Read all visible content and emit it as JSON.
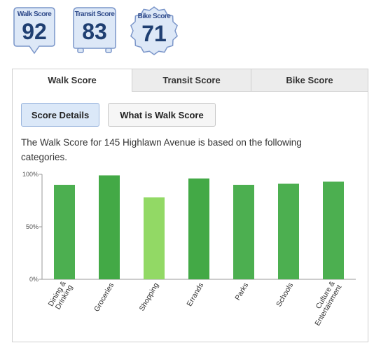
{
  "badges": [
    {
      "label": "Walk Score",
      "value": "92",
      "icon": "walk-pin-icon"
    },
    {
      "label": "Transit Score",
      "value": "83",
      "icon": "transit-bus-icon"
    },
    {
      "label": "Bike Score",
      "value": "71",
      "icon": "bike-gear-icon"
    }
  ],
  "tabs": [
    {
      "label": "Walk Score",
      "active": true
    },
    {
      "label": "Transit Score",
      "active": false
    },
    {
      "label": "Bike Score",
      "active": false
    }
  ],
  "buttons": {
    "score_details": "Score Details",
    "what_is": "What is Walk Score"
  },
  "description": "The Walk Score for 145 Highlawn Avenue is based on the following categories.",
  "colors": {
    "bar_dark": "#4caf50",
    "bar_light": "#92d965",
    "badge_fill": "#dde8f7",
    "badge_stroke": "#7a95c9"
  },
  "chart_data": {
    "type": "bar",
    "categories": [
      "Dining & Drinking",
      "Groceries",
      "Shopping",
      "Errands",
      "Parks",
      "Schools",
      "Culture & Entertainment"
    ],
    "values": [
      90,
      99,
      78,
      96,
      90,
      91,
      93
    ],
    "ylim": [
      0,
      100
    ],
    "yticks": [
      "0%",
      "50%",
      "100%"
    ],
    "title": "",
    "xlabel": "",
    "ylabel": ""
  }
}
